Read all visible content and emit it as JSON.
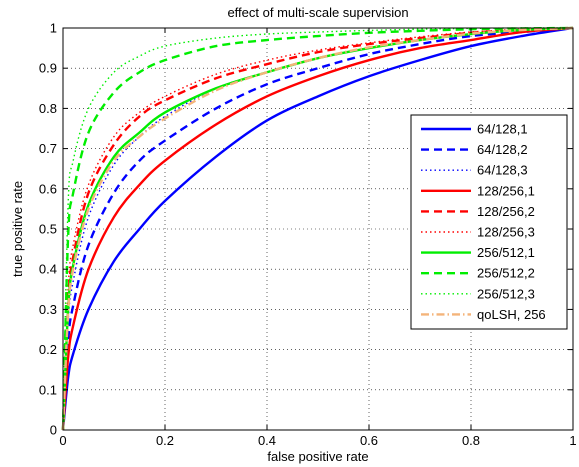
{
  "chart_data": {
    "type": "line",
    "title": "effect of multi-scale supervision",
    "xlabel": "false positive rate",
    "ylabel": "true positive rate",
    "xlim": [
      0,
      1
    ],
    "ylim": [
      0,
      1
    ],
    "xticks": [
      0,
      0.2,
      0.4,
      0.6,
      0.8,
      1
    ],
    "yticks": [
      0,
      0.1,
      0.2,
      0.3,
      0.4,
      0.5,
      0.6,
      0.7,
      0.8,
      0.9,
      1
    ],
    "xtick_labels": [
      "0",
      "0.2",
      "0.4",
      "0.6",
      "0.8",
      "1"
    ],
    "ytick_labels": [
      "0",
      "0.1",
      "0.2",
      "0.3",
      "0.4",
      "0.5",
      "0.6",
      "0.7",
      "0.8",
      "0.9",
      "1"
    ],
    "grid": true,
    "legend_position": "right",
    "x": [
      0,
      0.01,
      0.02,
      0.05,
      0.1,
      0.15,
      0.2,
      0.3,
      0.4,
      0.5,
      0.6,
      0.7,
      0.8,
      0.9,
      1
    ],
    "series": [
      {
        "name": "64/128,1",
        "color": "#0000ff",
        "style": "solid",
        "values": [
          0,
          0.13,
          0.19,
          0.3,
          0.42,
          0.5,
          0.57,
          0.68,
          0.77,
          0.83,
          0.88,
          0.92,
          0.955,
          0.98,
          1
        ]
      },
      {
        "name": "64/128,2",
        "color": "#0000ff",
        "style": "dashed",
        "values": [
          0,
          0.22,
          0.31,
          0.46,
          0.59,
          0.67,
          0.72,
          0.8,
          0.86,
          0.9,
          0.935,
          0.96,
          0.98,
          0.99,
          1
        ]
      },
      {
        "name": "64/128,3",
        "color": "#0000ff",
        "style": "dotted",
        "values": [
          0,
          0.27,
          0.37,
          0.53,
          0.66,
          0.73,
          0.78,
          0.85,
          0.89,
          0.925,
          0.95,
          0.97,
          0.985,
          0.995,
          1
        ]
      },
      {
        "name": "128/256,1",
        "color": "#ff0000",
        "style": "solid",
        "values": [
          0,
          0.18,
          0.26,
          0.4,
          0.53,
          0.61,
          0.67,
          0.76,
          0.83,
          0.88,
          0.92,
          0.95,
          0.97,
          0.99,
          1
        ]
      },
      {
        "name": "128/256,2",
        "color": "#ff0000",
        "style": "dashed",
        "values": [
          0,
          0.32,
          0.43,
          0.59,
          0.71,
          0.78,
          0.82,
          0.875,
          0.91,
          0.94,
          0.96,
          0.975,
          0.988,
          0.996,
          1
        ]
      },
      {
        "name": "128/256,3",
        "color": "#ff0000",
        "style": "dotted",
        "values": [
          0,
          0.35,
          0.46,
          0.61,
          0.73,
          0.79,
          0.83,
          0.885,
          0.92,
          0.945,
          0.963,
          0.978,
          0.99,
          0.997,
          1
        ]
      },
      {
        "name": "256/512,1",
        "color": "#00ee00",
        "style": "solid",
        "values": [
          0,
          0.3,
          0.41,
          0.56,
          0.68,
          0.74,
          0.79,
          0.85,
          0.89,
          0.925,
          0.95,
          0.97,
          0.985,
          0.995,
          1
        ]
      },
      {
        "name": "256/512,2",
        "color": "#00ee00",
        "style": "dashed",
        "values": [
          0,
          0.48,
          0.59,
          0.74,
          0.84,
          0.89,
          0.92,
          0.955,
          0.97,
          0.98,
          0.988,
          0.993,
          0.997,
          0.999,
          1
        ]
      },
      {
        "name": "256/512,3",
        "color": "#00ee00",
        "style": "dotted",
        "values": [
          0,
          0.56,
          0.67,
          0.8,
          0.89,
          0.93,
          0.955,
          0.975,
          0.985,
          0.99,
          0.994,
          0.997,
          0.999,
          1,
          1
        ]
      },
      {
        "name": "qoLSH, 256",
        "color": "#f4b47a",
        "style": "dashdot",
        "values": [
          0,
          0.29,
          0.4,
          0.55,
          0.67,
          0.73,
          0.775,
          0.845,
          0.89,
          0.925,
          0.952,
          0.97,
          0.986,
          0.995,
          1
        ]
      }
    ]
  }
}
